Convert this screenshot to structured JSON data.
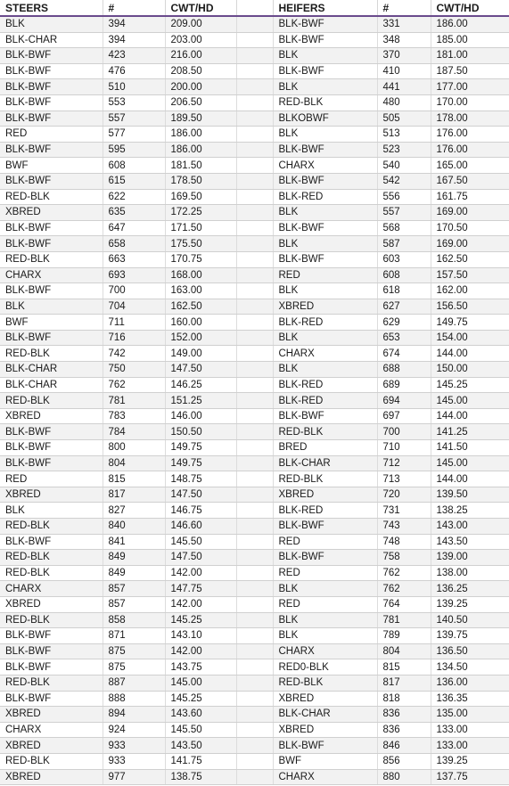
{
  "headers": [
    "STEERS",
    "#",
    "CWT/HD",
    "",
    "HEIFERS",
    "#",
    "CWT/HD"
  ],
  "rows": [
    [
      "BLK",
      "394",
      "209.00",
      "BLK-BWF",
      "331",
      "186.00"
    ],
    [
      "BLK-CHAR",
      "394",
      "203.00",
      "BLK-BWF",
      "348",
      "185.00"
    ],
    [
      "BLK-BWF",
      "423",
      "216.00",
      "BLK",
      "370",
      "181.00"
    ],
    [
      "BLK-BWF",
      "476",
      "208.50",
      "BLK-BWF",
      "410",
      "187.50"
    ],
    [
      "BLK-BWF",
      "510",
      "200.00",
      "BLK",
      "441",
      "177.00"
    ],
    [
      "BLK-BWF",
      "553",
      "206.50",
      "RED-BLK",
      "480",
      "170.00"
    ],
    [
      "BLK-BWF",
      "557",
      "189.50",
      "BLKOBWF",
      "505",
      "178.00"
    ],
    [
      "RED",
      "577",
      "186.00",
      "BLK",
      "513",
      "176.00"
    ],
    [
      "BLK-BWF",
      "595",
      "186.00",
      "BLK-BWF",
      "523",
      "176.00"
    ],
    [
      "BWF",
      "608",
      "181.50",
      "CHARX",
      "540",
      "165.00"
    ],
    [
      "BLK-BWF",
      "615",
      "178.50",
      "BLK-BWF",
      "542",
      "167.50"
    ],
    [
      "RED-BLK",
      "622",
      "169.50",
      "BLK-RED",
      "556",
      "161.75"
    ],
    [
      "XBRED",
      "635",
      "172.25",
      "BLK",
      "557",
      "169.00"
    ],
    [
      "BLK-BWF",
      "647",
      "171.50",
      "BLK-BWF",
      "568",
      "170.50"
    ],
    [
      "BLK-BWF",
      "658",
      "175.50",
      "BLK",
      "587",
      "169.00"
    ],
    [
      "RED-BLK",
      "663",
      "170.75",
      "BLK-BWF",
      "603",
      "162.50"
    ],
    [
      "CHARX",
      "693",
      "168.00",
      "RED",
      "608",
      "157.50"
    ],
    [
      "BLK-BWF",
      "700",
      "163.00",
      "BLK",
      "618",
      "162.00"
    ],
    [
      "BLK",
      "704",
      "162.50",
      "XBRED",
      "627",
      "156.50"
    ],
    [
      "BWF",
      "711",
      "160.00",
      "BLK-RED",
      "629",
      "149.75"
    ],
    [
      "BLK-BWF",
      "716",
      "152.00",
      "BLK",
      "653",
      "154.00"
    ],
    [
      "RED-BLK",
      "742",
      "149.00",
      "CHARX",
      "674",
      "144.00"
    ],
    [
      "BLK-CHAR",
      "750",
      "147.50",
      "BLK",
      "688",
      "150.00"
    ],
    [
      "BLK-CHAR",
      "762",
      "146.25",
      "BLK-RED",
      "689",
      "145.25"
    ],
    [
      "RED-BLK",
      "781",
      "151.25",
      "BLK-RED",
      "694",
      "145.00"
    ],
    [
      "XBRED",
      "783",
      "146.00",
      "BLK-BWF",
      "697",
      "144.00"
    ],
    [
      "BLK-BWF",
      "784",
      "150.50",
      "RED-BLK",
      "700",
      "141.25"
    ],
    [
      "BLK-BWF",
      "800",
      "149.75",
      "BRED",
      "710",
      "141.50"
    ],
    [
      "BLK-BWF",
      "804",
      "149.75",
      "BLK-CHAR",
      "712",
      "145.00"
    ],
    [
      "RED",
      "815",
      "148.75",
      "RED-BLK",
      "713",
      "144.00"
    ],
    [
      "XBRED",
      "817",
      "147.50",
      "XBRED",
      "720",
      "139.50"
    ],
    [
      "BLK",
      "827",
      "146.75",
      "BLK-RED",
      "731",
      "138.25"
    ],
    [
      "RED-BLK",
      "840",
      "146.60",
      "BLK-BWF",
      "743",
      "143.00"
    ],
    [
      "BLK-BWF",
      "841",
      "145.50",
      "RED",
      "748",
      "143.50"
    ],
    [
      "RED-BLK",
      "849",
      "147.50",
      "BLK-BWF",
      "758",
      "139.00"
    ],
    [
      "RED-BLK",
      "849",
      "142.00",
      "RED",
      "762",
      "138.00"
    ],
    [
      "CHARX",
      "857",
      "147.75",
      "BLK",
      "762",
      "136.25"
    ],
    [
      "XBRED",
      "857",
      "142.00",
      "RED",
      "764",
      "139.25"
    ],
    [
      "RED-BLK",
      "858",
      "145.25",
      "BLK",
      "781",
      "140.50"
    ],
    [
      "BLK-BWF",
      "871",
      "143.10",
      "BLK",
      "789",
      "139.75"
    ],
    [
      "BLK-BWF",
      "875",
      "142.00",
      "CHARX",
      "804",
      "136.50"
    ],
    [
      "BLK-BWF",
      "875",
      "143.75",
      "RED0-BLK",
      "815",
      "134.50"
    ],
    [
      "RED-BLK",
      "887",
      "145.00",
      "RED-BLK",
      "817",
      "136.00"
    ],
    [
      "BLK-BWF",
      "888",
      "145.25",
      "XBRED",
      "818",
      "136.35"
    ],
    [
      "XBRED",
      "894",
      "143.60",
      "BLK-CHAR",
      "836",
      "135.00"
    ],
    [
      "CHARX",
      "924",
      "145.50",
      "XBRED",
      "836",
      "133.00"
    ],
    [
      "XBRED",
      "933",
      "143.50",
      "BLK-BWF",
      "846",
      "133.00"
    ],
    [
      "RED-BLK",
      "933",
      "141.75",
      "BWF",
      "856",
      "139.25"
    ],
    [
      "XBRED",
      "977",
      "138.75",
      "CHARX",
      "880",
      "137.75"
    ]
  ]
}
